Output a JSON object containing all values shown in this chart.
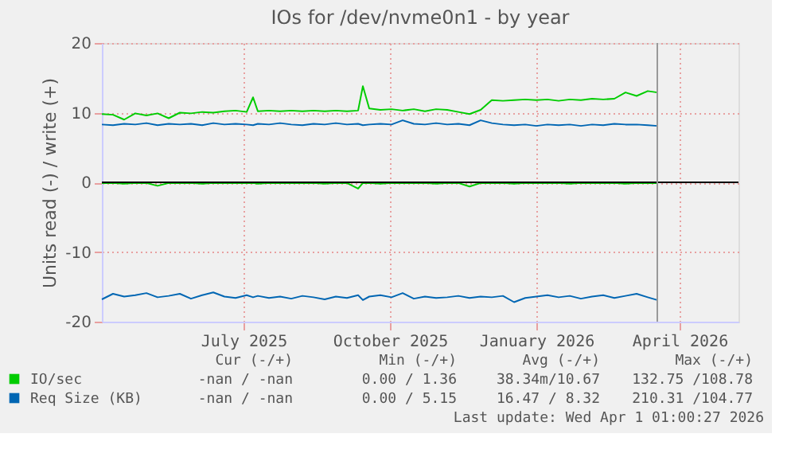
{
  "chart_data": {
    "type": "line",
    "title": "IOs for /dev/nvme0n1 - by year",
    "ylabel": "Units read (-) / write (+)",
    "x": [
      "2025-04-17",
      "2025-04-24",
      "2025-05-01",
      "2025-05-08",
      "2025-05-15",
      "2025-05-22",
      "2025-05-29",
      "2025-06-05",
      "2025-06-12",
      "2025-06-19",
      "2025-06-26",
      "2025-07-03",
      "2025-07-10",
      "2025-07-17",
      "2025-07-21",
      "2025-07-24",
      "2025-07-31",
      "2025-08-07",
      "2025-08-14",
      "2025-08-21",
      "2025-08-28",
      "2025-09-04",
      "2025-09-11",
      "2025-09-18",
      "2025-09-25",
      "2025-09-28",
      "2025-10-02",
      "2025-10-09",
      "2025-10-16",
      "2025-10-23",
      "2025-10-30",
      "2025-11-06",
      "2025-11-13",
      "2025-11-20",
      "2025-11-27",
      "2025-12-04",
      "2025-12-11",
      "2025-12-18",
      "2025-12-25",
      "2026-01-01",
      "2026-01-08",
      "2026-01-15",
      "2026-01-22",
      "2026-01-29",
      "2026-02-05",
      "2026-02-12",
      "2026-02-19",
      "2026-02-26",
      "2026-03-05",
      "2026-03-12",
      "2026-03-19",
      "2026-03-26",
      "2026-04-01"
    ],
    "series": [
      {
        "name": "IO/sec",
        "color": "#00cc00",
        "values": [
          9.8,
          9.7,
          9.0,
          9.9,
          9.6,
          9.9,
          9.2,
          10.0,
          9.9,
          10.1,
          10.0,
          10.2,
          10.3,
          10.1,
          12.2,
          10.2,
          10.3,
          10.2,
          10.3,
          10.2,
          10.3,
          10.2,
          10.3,
          10.2,
          10.3,
          13.8,
          10.6,
          10.4,
          10.5,
          10.3,
          10.5,
          10.2,
          10.5,
          10.4,
          10.1,
          9.8,
          10.4,
          11.8,
          11.7,
          11.8,
          11.9,
          11.8,
          11.9,
          11.7,
          11.9,
          11.8,
          12.0,
          11.9,
          12.0,
          12.9,
          12.4,
          13.1,
          12.9
        ]
      },
      {
        "color": "#00cc00",
        "values": [
          -0.1,
          -0.1,
          -0.2,
          -0.1,
          -0.1,
          -0.5,
          -0.1,
          -0.1,
          -0.1,
          -0.2,
          -0.1,
          -0.1,
          -0.1,
          -0.1,
          -0.1,
          -0.2,
          -0.1,
          -0.1,
          -0.1,
          -0.1,
          -0.1,
          -0.2,
          -0.1,
          -0.1,
          -0.9,
          -0.1,
          -0.1,
          -0.2,
          -0.1,
          -0.1,
          -0.1,
          -0.1,
          -0.2,
          -0.1,
          -0.1,
          -0.6,
          -0.1,
          -0.1,
          -0.1,
          -0.2,
          -0.1,
          -0.1,
          -0.1,
          -0.1,
          -0.2,
          -0.1,
          -0.1,
          -0.1,
          -0.1,
          -0.2,
          -0.1,
          -0.1,
          -0.1
        ]
      },
      {
        "name": "Req Size (KB)",
        "color": "#0066b3",
        "values": [
          8.3,
          8.2,
          8.4,
          8.3,
          8.5,
          8.2,
          8.4,
          8.3,
          8.4,
          8.2,
          8.5,
          8.3,
          8.4,
          8.3,
          8.2,
          8.4,
          8.3,
          8.5,
          8.3,
          8.2,
          8.4,
          8.3,
          8.5,
          8.3,
          8.4,
          8.2,
          8.3,
          8.4,
          8.3,
          8.9,
          8.4,
          8.3,
          8.5,
          8.3,
          8.4,
          8.2,
          8.9,
          8.5,
          8.3,
          8.2,
          8.3,
          8.1,
          8.3,
          8.2,
          8.3,
          8.1,
          8.3,
          8.2,
          8.4,
          8.3,
          8.3,
          8.2,
          8.1
        ]
      },
      {
        "color": "#0066b3",
        "values": [
          -16.8,
          -16.0,
          -16.4,
          -16.2,
          -15.9,
          -16.5,
          -16.3,
          -16.0,
          -16.7,
          -16.2,
          -15.8,
          -16.4,
          -16.6,
          -16.2,
          -16.5,
          -16.3,
          -16.6,
          -16.4,
          -16.7,
          -16.3,
          -16.5,
          -16.8,
          -16.4,
          -16.6,
          -16.2,
          -16.9,
          -16.4,
          -16.2,
          -16.5,
          -15.9,
          -16.7,
          -16.4,
          -16.6,
          -16.5,
          -16.3,
          -16.6,
          -16.4,
          -16.5,
          -16.3,
          -17.2,
          -16.6,
          -16.4,
          -16.2,
          -16.5,
          -16.3,
          -16.7,
          -16.4,
          -16.2,
          -16.6,
          -16.3,
          -16.0,
          -16.5,
          -16.9
        ]
      }
    ],
    "xlim": [
      "2025-04-17",
      "2026-05-22"
    ],
    "xticks": [
      {
        "value": "2025-07-15",
        "label": "July 2025"
      },
      {
        "value": "2025-10-15",
        "label": "October 2025"
      },
      {
        "value": "2026-01-15",
        "label": "January 2026"
      },
      {
        "value": "2026-04-15",
        "label": "April 2026"
      }
    ],
    "ylim": [
      -20,
      20
    ],
    "yticks": [
      -20,
      -10,
      0,
      10,
      20
    ],
    "grid": true,
    "legend": "bottom",
    "ref_lines": [
      {
        "axis": "y",
        "value": 0,
        "color": "#000000"
      },
      {
        "axis": "x",
        "value": "2026-04-01",
        "color": "#999999"
      }
    ],
    "annotations": [
      "Cur (-/+)",
      "Min (-/+)",
      "Avg (-/+)",
      "Max (-/+)",
      "-nan / -nan",
      "0.00 / 1.36",
      "38.34m/10.67",
      "132.75 /108.78",
      "-nan / -nan",
      "0.00 / 5.15",
      "16.47 / 8.32",
      "210.31 /104.77",
      "Last update: Wed Apr  1 01:00:27 2026"
    ]
  }
}
